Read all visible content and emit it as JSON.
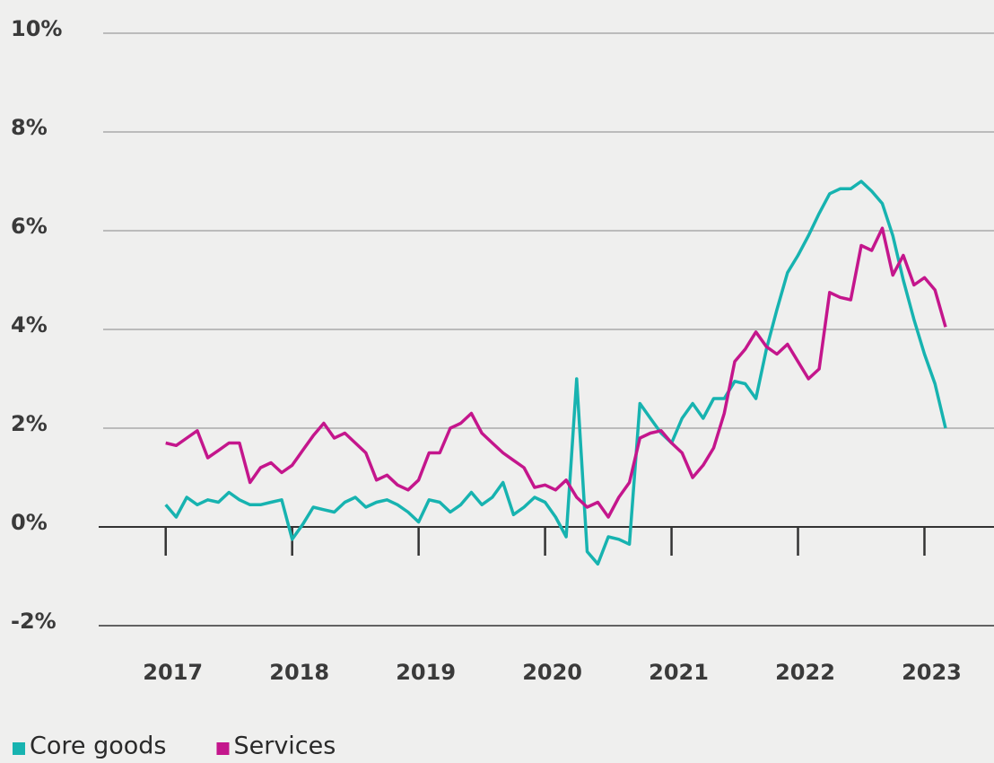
{
  "chart_data": {
    "type": "line",
    "x": [
      2017,
      2017.083,
      2017.167,
      2017.25,
      2017.333,
      2017.417,
      2017.5,
      2017.583,
      2017.667,
      2017.75,
      2017.833,
      2017.917,
      2018,
      2018.083,
      2018.167,
      2018.25,
      2018.333,
      2018.417,
      2018.5,
      2018.583,
      2018.667,
      2018.75,
      2018.833,
      2018.917,
      2019,
      2019.083,
      2019.167,
      2019.25,
      2019.333,
      2019.417,
      2019.5,
      2019.583,
      2019.667,
      2019.75,
      2019.833,
      2019.917,
      2020,
      2020.083,
      2020.167,
      2020.25,
      2020.333,
      2020.417,
      2020.5,
      2020.583,
      2020.667,
      2020.75,
      2020.833,
      2020.917,
      2021,
      2021.083,
      2021.167,
      2021.25,
      2021.333,
      2021.417,
      2021.5,
      2021.583,
      2021.667,
      2021.75,
      2021.833,
      2021.917,
      2022,
      2022.083,
      2022.167,
      2022.25,
      2022.333,
      2022.417,
      2022.5,
      2022.583,
      2022.667,
      2022.75,
      2022.833,
      2022.917,
      2023,
      2023.083,
      2023.167
    ],
    "series": [
      {
        "name": "Core goods",
        "color": "#17b3b0",
        "values": [
          0.45,
          0.2,
          0.6,
          0.45,
          0.55,
          0.5,
          0.7,
          0.55,
          0.45,
          0.45,
          0.5,
          0.55,
          -0.25,
          0.05,
          0.4,
          0.35,
          0.3,
          0.5,
          0.6,
          0.4,
          0.5,
          0.55,
          0.45,
          0.3,
          0.1,
          0.55,
          0.5,
          0.3,
          0.45,
          0.7,
          0.45,
          0.6,
          0.9,
          0.25,
          0.4,
          0.6,
          0.5,
          0.2,
          -0.2,
          3.0,
          -0.5,
          -0.75,
          -0.2,
          -0.25,
          -0.35,
          2.5,
          2.2,
          1.9,
          1.7,
          2.2,
          2.5,
          2.2,
          2.6,
          2.6,
          2.95,
          2.9,
          2.6,
          3.6,
          4.4,
          5.15,
          5.5,
          5.9,
          6.35,
          6.75,
          6.85,
          6.85,
          7.0,
          6.8,
          6.55,
          5.9,
          5.0,
          4.2,
          3.5,
          2.9,
          2.0
        ]
      },
      {
        "name": "Services",
        "color": "#c4168c",
        "values": [
          1.7,
          1.65,
          1.8,
          1.95,
          1.4,
          1.55,
          1.7,
          1.7,
          0.9,
          1.2,
          1.3,
          1.1,
          1.25,
          1.55,
          1.85,
          2.1,
          1.8,
          1.9,
          1.7,
          1.5,
          0.95,
          1.05,
          0.85,
          0.75,
          0.95,
          1.5,
          1.5,
          2.0,
          2.1,
          2.3,
          1.9,
          1.7,
          1.5,
          1.35,
          1.2,
          0.8,
          0.85,
          0.75,
          0.95,
          0.6,
          0.4,
          0.5,
          0.2,
          0.6,
          0.9,
          1.8,
          1.9,
          1.95,
          1.7,
          1.5,
          1.0,
          1.25,
          1.6,
          2.3,
          3.35,
          3.6,
          3.95,
          3.65,
          3.5,
          3.7,
          3.35,
          3.0,
          3.2,
          4.75,
          4.65,
          4.6,
          5.7,
          5.6,
          6.05,
          5.1,
          5.5,
          4.9,
          5.05,
          4.8,
          4.05
        ]
      }
    ],
    "xlim": [
      2016.47,
      2023.55
    ],
    "xticks": [
      2017,
      2018,
      2019,
      2020,
      2021,
      2022,
      2023
    ],
    "ylim": [
      -2,
      10
    ],
    "yticks": [
      {
        "value": -2,
        "label": "-2%"
      },
      {
        "value": 0,
        "label": "0%"
      },
      {
        "value": 2,
        "label": "2%"
      },
      {
        "value": 4,
        "label": "4%"
      },
      {
        "value": 6,
        "label": "6%"
      },
      {
        "value": 8,
        "label": "8%"
      },
      {
        "value": 10,
        "label": "10%"
      }
    ],
    "grid": true
  }
}
